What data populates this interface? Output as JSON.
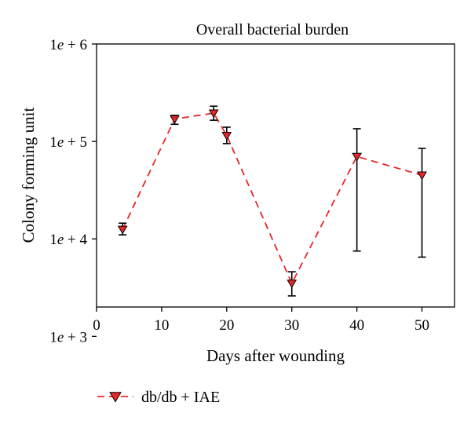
{
  "chart_data": {
    "type": "line",
    "title": "Overall bacterial burden",
    "xlabel": "Days after wounding",
    "ylabel": "Colony forming unit",
    "xlim": [
      0,
      55
    ],
    "ylim": [
      2000,
      1000000
    ],
    "yscale": "log",
    "x_ticks": [
      0,
      10,
      20,
      30,
      40,
      50
    ],
    "x_tick_labels": [
      "0",
      "10",
      "20",
      "30",
      "40",
      "50"
    ],
    "y_ticks": [
      1000,
      10000,
      100000,
      1000000
    ],
    "y_tick_labels": [
      {
        "base": "1",
        "e": "e",
        "rest": " + 3"
      },
      {
        "base": "1",
        "e": "e",
        "rest": " + 4"
      },
      {
        "base": "1",
        "e": "e",
        "rest": " + 5"
      },
      {
        "base": "1",
        "e": "e",
        "rest": " + 6"
      }
    ],
    "grid": false,
    "legend_position": "bottom-left",
    "series": [
      {
        "name": "db/db + IAE",
        "color": "#e8262a",
        "marker": "triangle-down",
        "x": [
          4,
          12,
          18,
          20,
          30,
          40,
          50
        ],
        "y": [
          12500,
          170000,
          195000,
          115000,
          3500,
          70000,
          45000
        ],
        "err_low": [
          11000,
          150000,
          165000,
          95000,
          2600,
          7500,
          6500
        ],
        "err_high": [
          14500,
          185000,
          230000,
          140000,
          4600,
          135000,
          85000
        ]
      }
    ]
  }
}
